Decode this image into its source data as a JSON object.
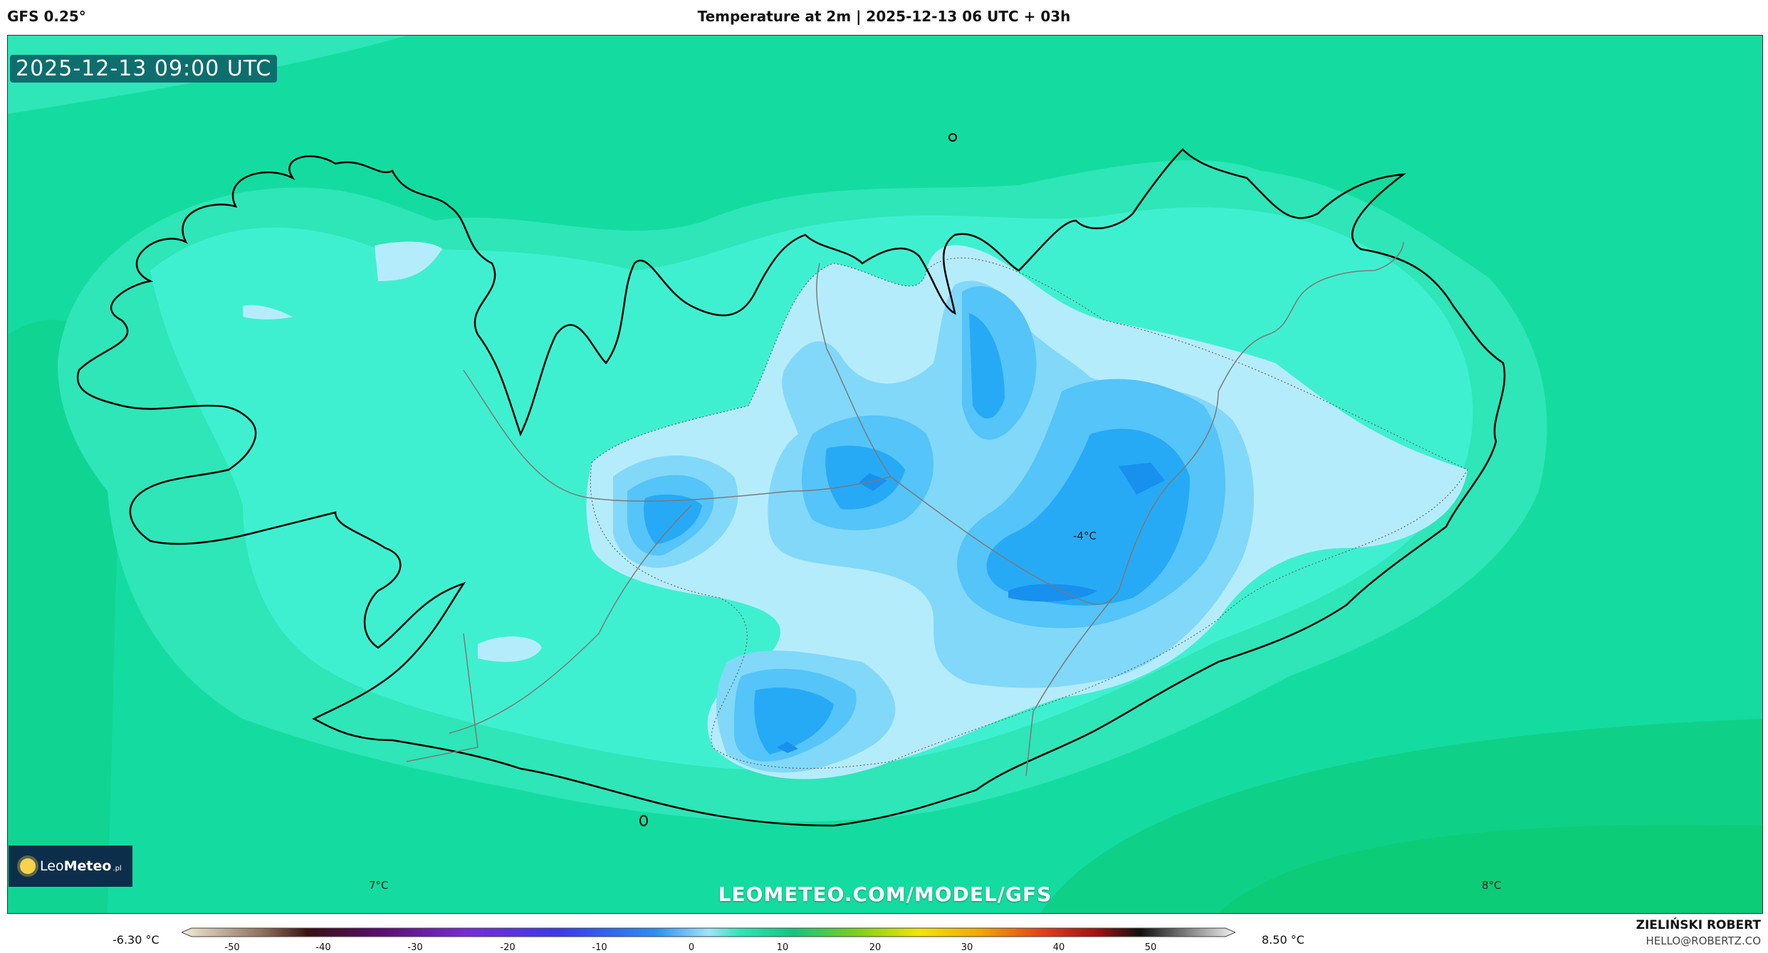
{
  "header": {
    "model": "GFS 0.25°",
    "title": "Temperature at 2m | 2025-12-13 06 UTC + 03h"
  },
  "map": {
    "valid_time": "2025-12-13 09:00 UTC",
    "watermark": "LEOMETEO.COM/MODEL/GFS",
    "region": "Iceland",
    "labels": [
      {
        "text": "-4°C"
      },
      {
        "text": "7°C"
      },
      {
        "text": "8°C"
      }
    ]
  },
  "logo": {
    "brand_a": "Leo",
    "brand_b": "Meteo",
    "tld": ".pl"
  },
  "colorbar": {
    "min_label": "-6.30 °C",
    "max_label": "8.50 °C",
    "ticks": [
      "-50",
      "-40",
      "-30",
      "-20",
      "-10",
      "0",
      "10",
      "20",
      "30",
      "40",
      "50"
    ]
  },
  "credits": {
    "author": "ZIELIŃSKI ROBERT",
    "email": "HELLO@ROBERTZ.CO"
  },
  "colors": {
    "sea_warm": "#0fd087",
    "sea": "#14dca0",
    "coast_band": "#2ee6b8",
    "near_zero": "#3ff0d0",
    "minus1": "#b5ecfb",
    "minus2": "#82d8f9",
    "minus3": "#55c4f8",
    "minus4": "#27aaf6",
    "minus5": "#1890ee"
  }
}
